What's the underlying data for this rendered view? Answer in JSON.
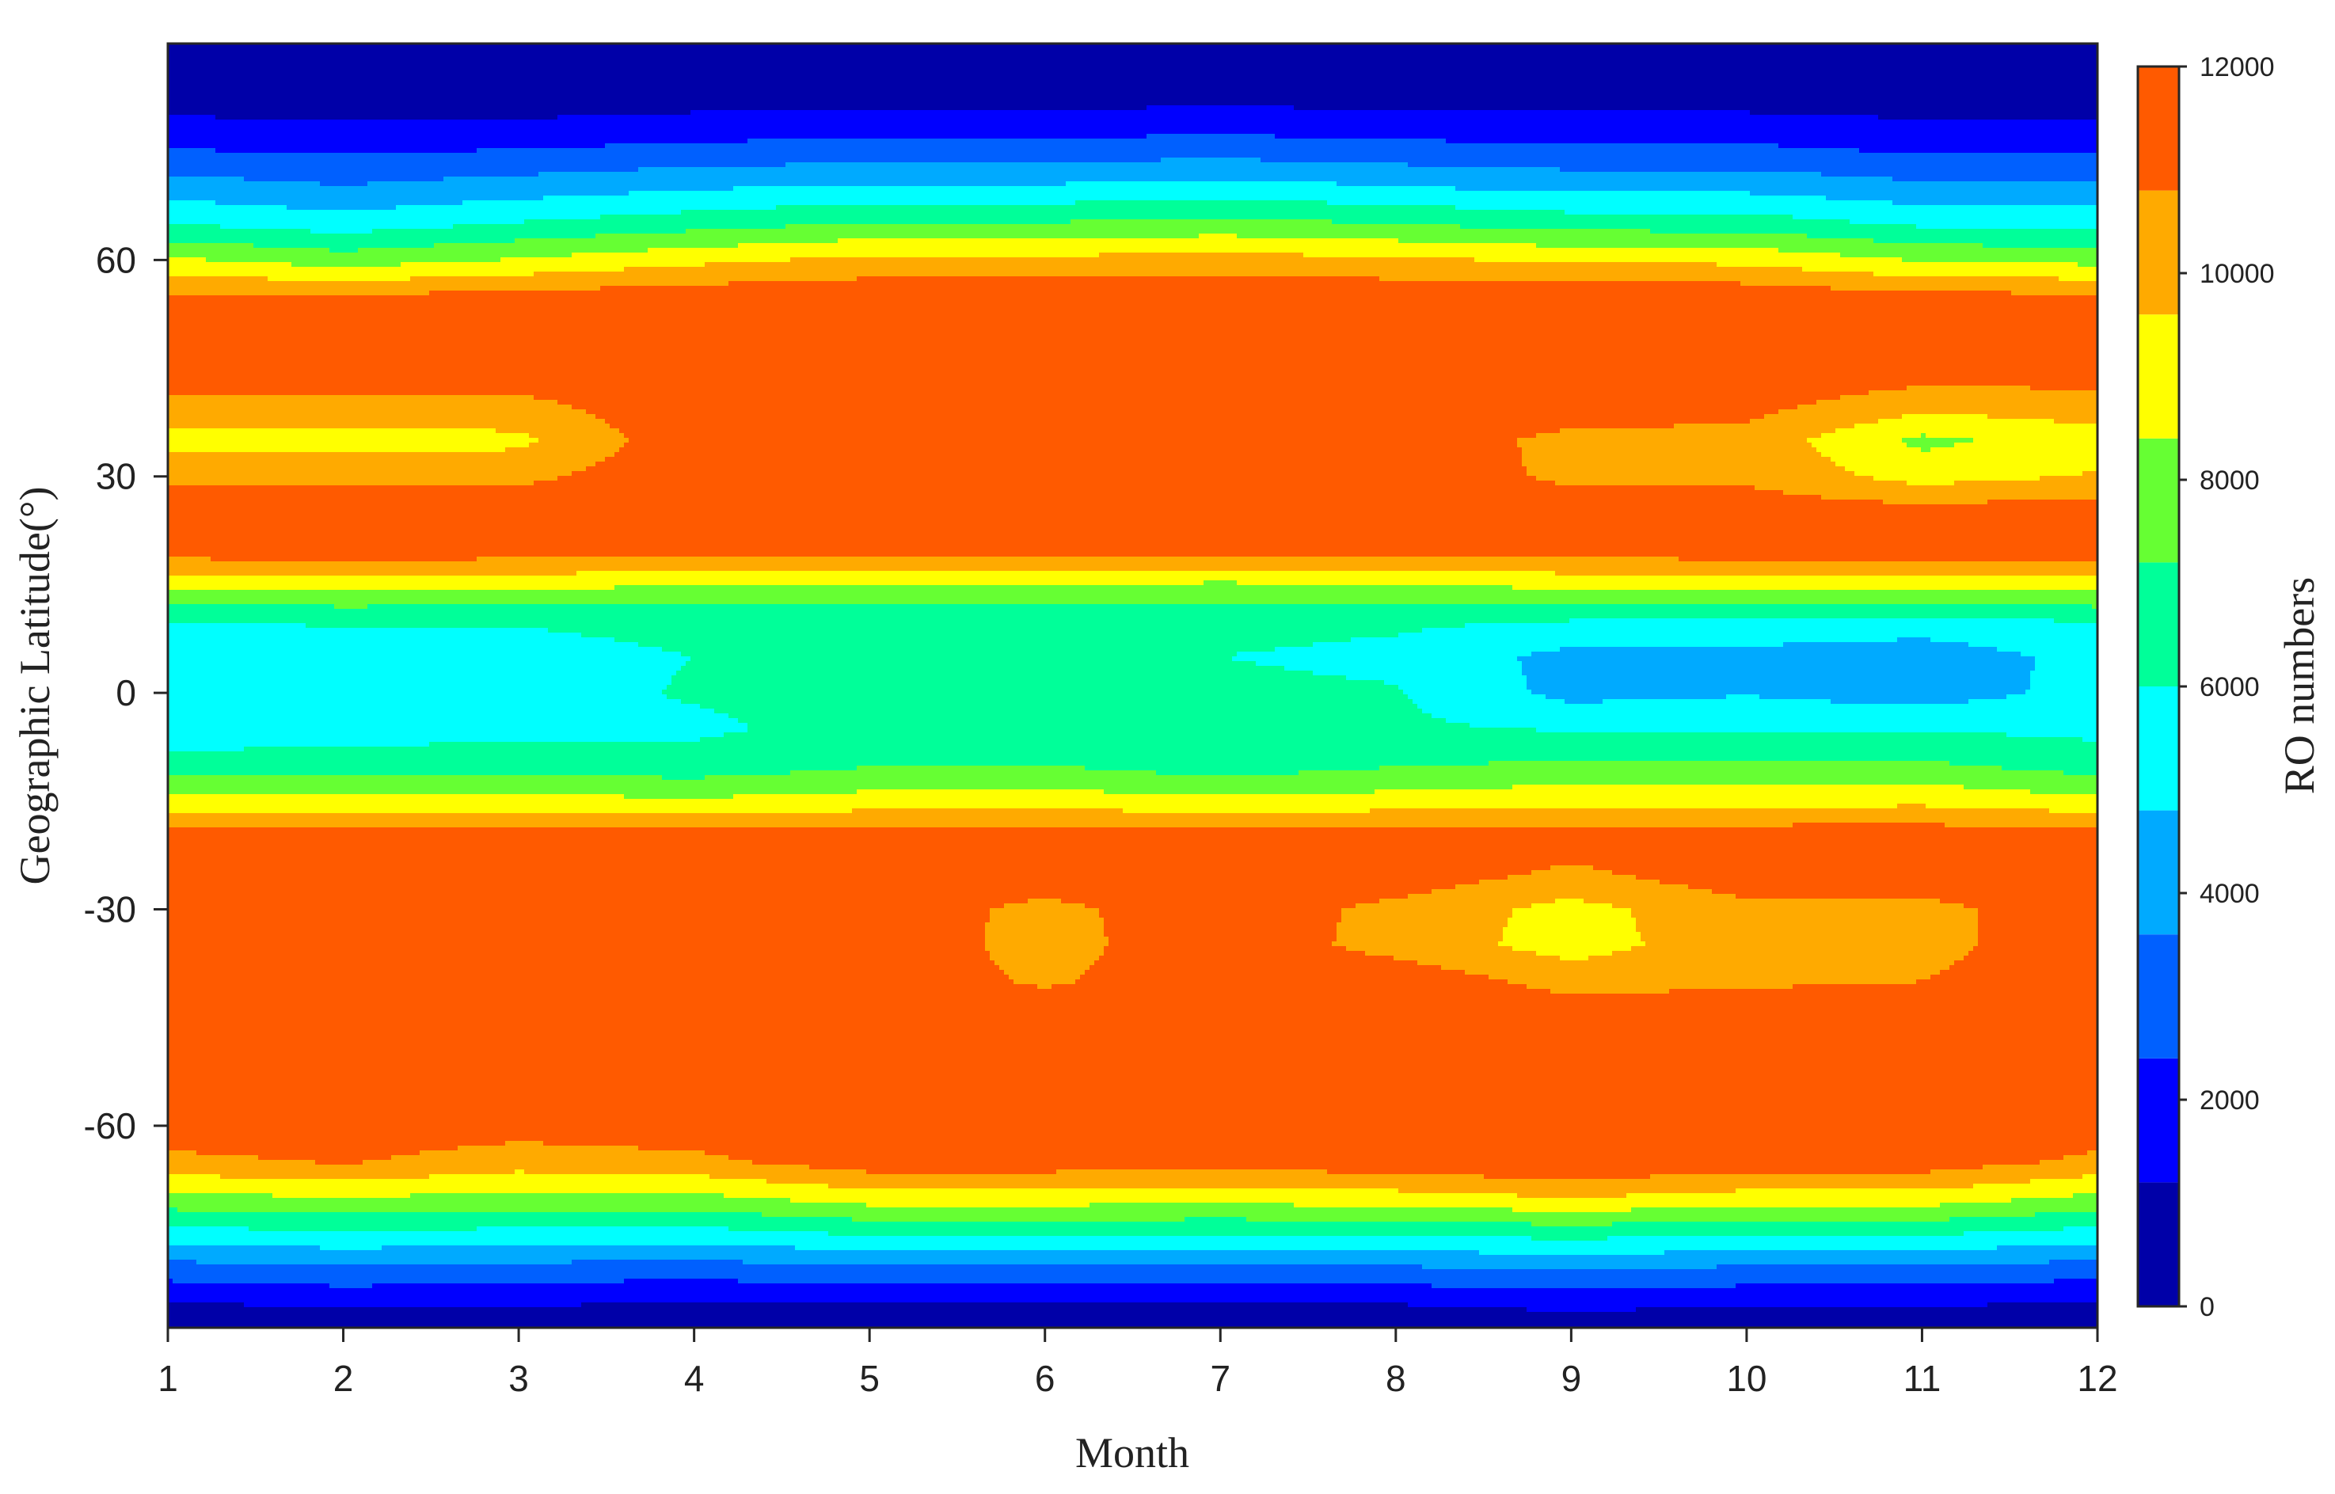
{
  "chart_data": {
    "type": "heatmap",
    "subtype": "filled-contour",
    "title": "",
    "xlabel": "Month",
    "ylabel": "Geographic Latitude(°)",
    "colorbar_label": "RO numbers",
    "x": [
      1,
      2,
      3,
      4,
      5,
      6,
      7,
      8,
      9,
      10,
      11,
      12
    ],
    "y": [
      -90,
      -85,
      -80,
      -75,
      -70,
      -65,
      -60,
      -55,
      -50,
      -45,
      -40,
      -35,
      -30,
      -25,
      -20,
      -15,
      -10,
      -5,
      0,
      5,
      10,
      15,
      20,
      25,
      30,
      35,
      40,
      45,
      50,
      55,
      60,
      65,
      70,
      75,
      80,
      85,
      90
    ],
    "xlim": [
      1,
      12
    ],
    "ylim": [
      -88,
      90
    ],
    "x_ticks": [
      "1",
      "2",
      "3",
      "4",
      "5",
      "6",
      "7",
      "8",
      "9",
      "10",
      "11",
      "12"
    ],
    "y_ticks": [
      "-60",
      "-30",
      "0",
      "30",
      "60"
    ],
    "y_tick_values": [
      -60,
      -30,
      0,
      30,
      60
    ],
    "colorbar_ticks": [
      "0",
      "2000",
      "4000",
      "6000",
      "8000",
      "10000",
      "12000"
    ],
    "colorbar_tick_values": [
      0,
      2000,
      4000,
      6000,
      8000,
      10000,
      12000
    ],
    "clim": [
      0,
      12000
    ],
    "contour_levels": [
      0,
      1200,
      2400,
      3600,
      4800,
      6000,
      7200,
      8400,
      9600,
      10800,
      12000
    ],
    "level_colors": [
      "#0000a8",
      "#0000ff",
      "#0060ff",
      "#00aaff",
      "#00ffff",
      "#00ff99",
      "#66ff33",
      "#ffff00",
      "#ffaa00",
      "#ff5a00"
    ],
    "z": [
      [
        0,
        0,
        0,
        0,
        0,
        0,
        0,
        0,
        0,
        0,
        0,
        0
      ],
      [
        1000,
        1300,
        1200,
        1000,
        1100,
        1100,
        1000,
        1100,
        1400,
        1200,
        1200,
        1000
      ],
      [
        3000,
        3300,
        3100,
        2900,
        3300,
        3300,
        3200,
        3300,
        3600,
        3300,
        3300,
        2900
      ],
      [
        5500,
        5800,
        5600,
        5500,
        6100,
        6100,
        6000,
        6100,
        6400,
        6100,
        6100,
        5500
      ],
      [
        8000,
        8400,
        8000,
        8100,
        9000,
        9000,
        8900,
        9100,
        9600,
        9100,
        9100,
        8100
      ],
      [
        10500,
        10900,
        10200,
        10500,
        11500,
        11500,
        11300,
        11600,
        12000,
        11500,
        11500,
        10500
      ],
      [
        11500,
        11500,
        11300,
        11500,
        11600,
        11600,
        11500,
        11600,
        11600,
        11600,
        11600,
        11500
      ],
      [
        11700,
        11700,
        11700,
        11700,
        11700,
        11700,
        11700,
        11700,
        11700,
        11700,
        11700,
        11700
      ],
      [
        11700,
        11700,
        11700,
        11700,
        11700,
        11700,
        11700,
        11700,
        11700,
        11700,
        11700,
        11700
      ],
      [
        11700,
        11700,
        11700,
        11700,
        11700,
        11700,
        11700,
        11700,
        11700,
        11700,
        11700,
        11700
      ],
      [
        11700,
        11700,
        11700,
        11700,
        11700,
        10600,
        11700,
        11700,
        10300,
        10600,
        10800,
        11700
      ],
      [
        11700,
        11700,
        11700,
        11700,
        11700,
        10300,
        11700,
        10300,
        9100,
        10300,
        10400,
        11700
      ],
      [
        11700,
        11700,
        11700,
        11700,
        11700,
        10400,
        11700,
        10400,
        9200,
        10400,
        10400,
        11700
      ],
      [
        11700,
        11700,
        11700,
        11700,
        11700,
        11700,
        11700,
        11700,
        10500,
        11700,
        11700,
        11700
      ],
      [
        11600,
        11600,
        11600,
        11600,
        11600,
        11600,
        11600,
        11600,
        11600,
        11600,
        11600,
        11600
      ],
      [
        8800,
        8800,
        8800,
        8600,
        8900,
        9000,
        8700,
        8900,
        9200,
        9200,
        9300,
        8700
      ],
      [
        6400,
        6500,
        6600,
        6400,
        7100,
        7200,
        6500,
        7100,
        7400,
        7400,
        7400,
        6600
      ],
      [
        5400,
        5500,
        5700,
        5800,
        6400,
        6500,
        6500,
        6200,
        5900,
        5900,
        5900,
        5700
      ],
      [
        5500,
        5600,
        5600,
        6100,
        6300,
        6300,
        6300,
        6100,
        4400,
        4700,
        4200,
        5200
      ],
      [
        5400,
        5500,
        5500,
        6000,
        6200,
        6200,
        6000,
        5700,
        4400,
        4300,
        3900,
        5300
      ],
      [
        6000,
        6100,
        6100,
        6400,
        6400,
        6400,
        6400,
        6200,
        6000,
        6000,
        5700,
        6100
      ],
      [
        8800,
        8900,
        8800,
        8400,
        8400,
        8400,
        8200,
        8400,
        8700,
        8900,
        9100,
        8900
      ],
      [
        11600,
        11600,
        11600,
        11600,
        11600,
        11600,
        11600,
        11600,
        11600,
        11600,
        11600,
        11600
      ],
      [
        11700,
        11700,
        11700,
        11700,
        11700,
        11700,
        11700,
        11700,
        11700,
        11600,
        11300,
        11600
      ],
      [
        10500,
        10500,
        10500,
        11700,
        11700,
        11700,
        11700,
        11700,
        10500,
        10500,
        9100,
        9700
      ],
      [
        9200,
        9100,
        9300,
        11700,
        11700,
        11700,
        11700,
        11700,
        10400,
        10400,
        8100,
        9100
      ],
      [
        10500,
        10500,
        10500,
        11700,
        11700,
        11700,
        11700,
        11700,
        11700,
        11200,
        10100,
        10300
      ],
      [
        11600,
        11600,
        11600,
        11700,
        11700,
        11700,
        11700,
        11700,
        11700,
        11700,
        11500,
        11500
      ],
      [
        11700,
        11700,
        11700,
        11700,
        11700,
        11700,
        11700,
        11700,
        11700,
        11700,
        11700,
        11700
      ],
      [
        11000,
        10900,
        11200,
        11500,
        11700,
        11700,
        11700,
        11700,
        11700,
        11600,
        11100,
        11000
      ],
      [
        8600,
        7800,
        8500,
        9300,
        9900,
        9900,
        10100,
        9800,
        9400,
        9300,
        8300,
        8000
      ],
      [
        6000,
        5400,
        6100,
        6700,
        7300,
        7300,
        7600,
        7200,
        6700,
        6600,
        5800,
        5600
      ],
      [
        4200,
        3700,
        4200,
        4700,
        5000,
        5000,
        5300,
        4900,
        4500,
        4500,
        3900,
        3900
      ],
      [
        2500,
        2300,
        2500,
        2800,
        3000,
        3000,
        3200,
        2900,
        2700,
        2700,
        2300,
        2300
      ],
      [
        1200,
        1000,
        1100,
        1300,
        1400,
        1400,
        1500,
        1400,
        1300,
        1300,
        1100,
        1100
      ],
      [
        200,
        200,
        200,
        250,
        300,
        300,
        300,
        300,
        250,
        250,
        200,
        200
      ],
      [
        0,
        0,
        0,
        0,
        0,
        0,
        0,
        0,
        0,
        0,
        0,
        0
      ]
    ],
    "grid": false,
    "legend": "colorbar right"
  }
}
